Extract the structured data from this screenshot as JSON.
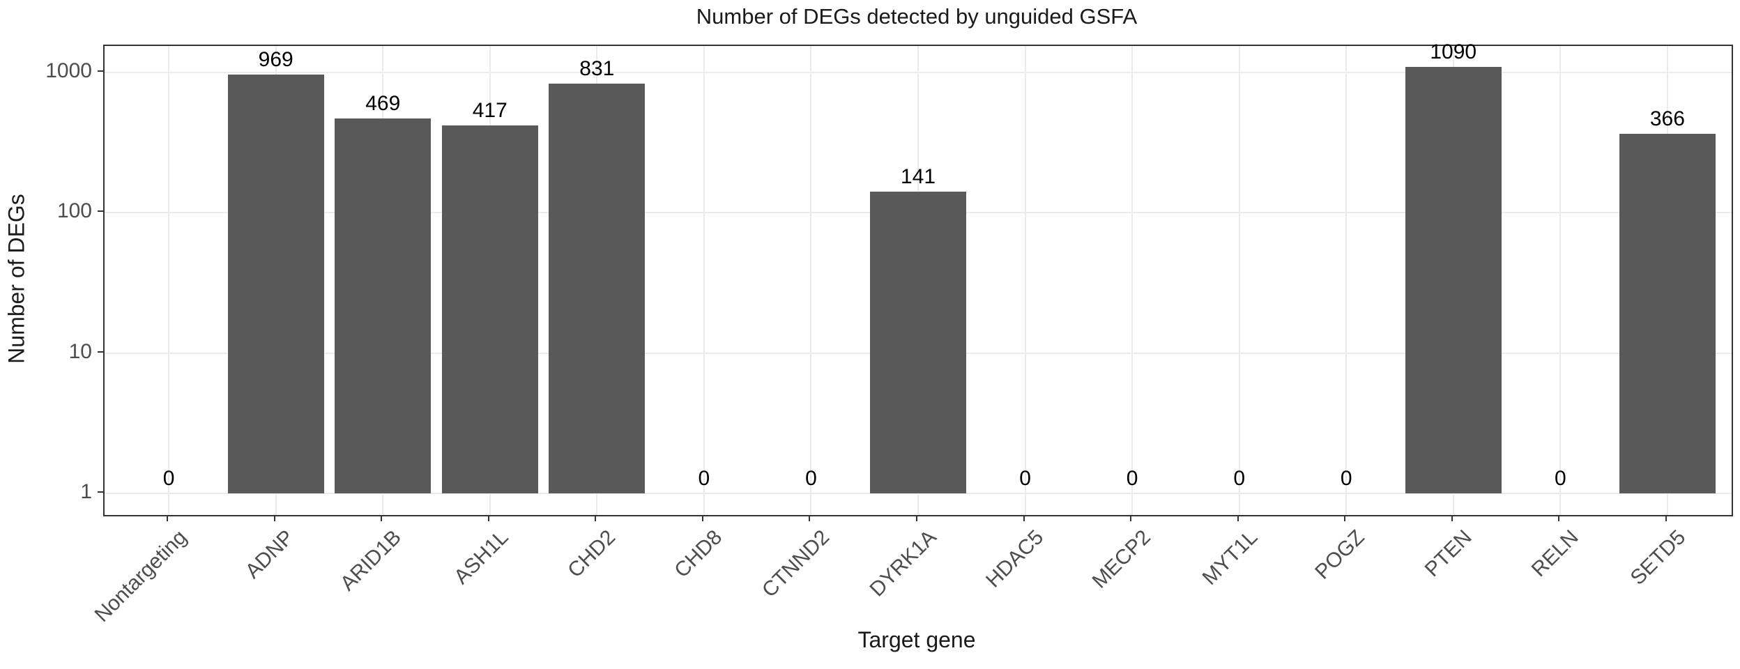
{
  "chart_data": {
    "type": "bar",
    "title": "Number of DEGs detected by unguided GSFA",
    "xlabel": "Target gene",
    "ylabel": "Number of DEGs",
    "categories": [
      "Nontargeting",
      "ADNP",
      "ARID1B",
      "ASH1L",
      "CHD2",
      "CHD8",
      "CTNND2",
      "DYRK1A",
      "HDAC5",
      "MECP2",
      "MYT1L",
      "POGZ",
      "PTEN",
      "RELN",
      "SETD5"
    ],
    "values": [
      0,
      969,
      469,
      417,
      831,
      0,
      0,
      141,
      0,
      0,
      0,
      0,
      1090,
      0,
      366
    ],
    "y_scale": "log10",
    "y_ticks": [
      1,
      10,
      100,
      1000
    ],
    "y_tick_labels": [
      "1",
      "10",
      "100",
      "1000"
    ],
    "ylim_log10": [
      -0.152,
      3.188
    ],
    "grid": "major-only",
    "legend": "none",
    "bar_label_position": "above-bar",
    "zero_label": "0",
    "colors": {
      "bar": "#595959",
      "grid": "#ebebeb",
      "panel_border": "#333333",
      "tick": "#333333",
      "axis_text": "#4d4d4d",
      "title_text": "#1a1a1a",
      "value_label_text": "#000000",
      "background": "#ffffff"
    }
  }
}
